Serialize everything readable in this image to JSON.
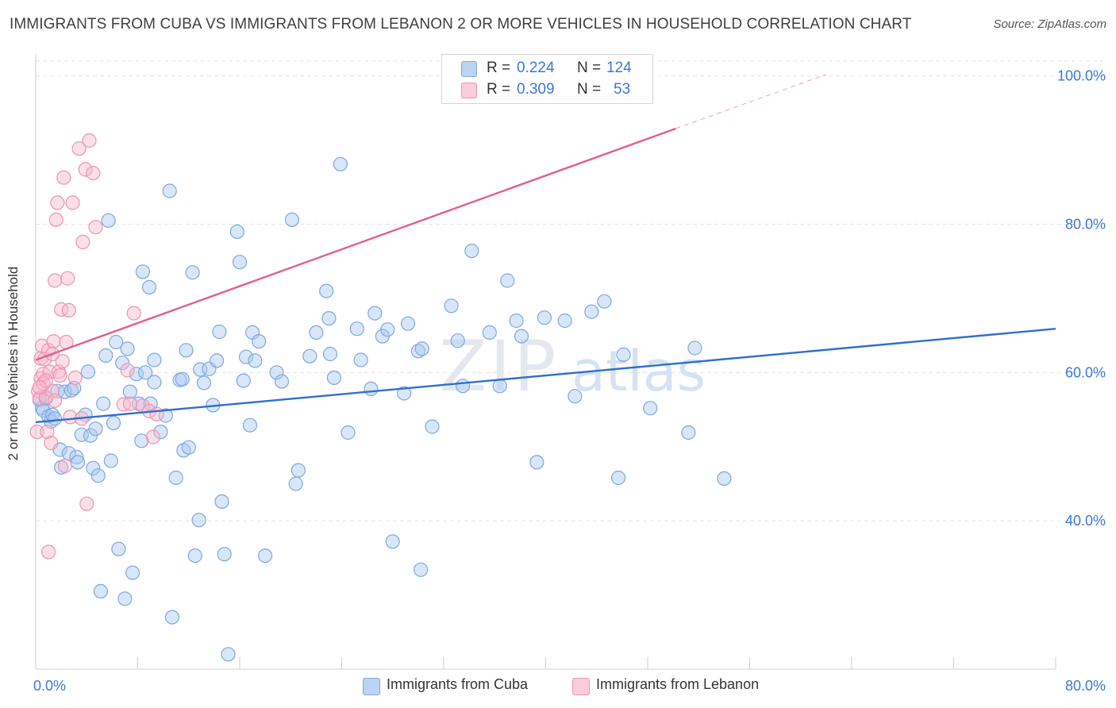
{
  "header": {
    "title": "IMMIGRANTS FROM CUBA VS IMMIGRANTS FROM LEBANON 2 OR MORE VEHICLES IN HOUSEHOLD CORRELATION CHART",
    "source": "Source: ZipAtlas.com"
  },
  "watermark": {
    "part1": "ZIP",
    "part2": "atlas"
  },
  "stats": {
    "rows": [
      {
        "r_label": "R =",
        "r_value": "0.224",
        "n_label": "N =",
        "n_value": "124",
        "color": "#a9c8f0"
      },
      {
        "r_label": "R =",
        "r_value": "0.309",
        "n_label": "N =",
        "n_value": "53",
        "color": "#f6b8cb"
      }
    ]
  },
  "legend": {
    "items": [
      {
        "label": "Immigrants from Cuba",
        "color": "#a9c8f0"
      },
      {
        "label": "Immigrants from Lebanon",
        "color": "#f6b8cb"
      }
    ]
  },
  "chart_data": {
    "type": "scatter",
    "title": "IMMIGRANTS FROM CUBA VS IMMIGRANTS FROM LEBANON 2 OR MORE VEHICLES IN HOUSEHOLD CORRELATION CHART",
    "xlabel": "",
    "ylabel": "2 or more Vehicles in Household",
    "xlim": [
      0,
      80
    ],
    "ylim": [
      20,
      102
    ],
    "x_tick_labels": [
      "0.0%",
      "80.0%"
    ],
    "y_ticks": [
      {
        "value": 40,
        "label": "40.0%"
      },
      {
        "value": 60,
        "label": "60.0%"
      },
      {
        "value": 80,
        "label": "80.0%"
      },
      {
        "value": 100,
        "label": "100.0%"
      }
    ],
    "grid": "horizontal dashed",
    "legend_position": "bottom-center",
    "series": [
      {
        "name": "Immigrants from Cuba",
        "color": "#a9c8f0",
        "stroke": "#7ea8e0",
        "trend_color": "#2f6fd0",
        "trend": {
          "x0": 0,
          "y0": 53.3,
          "x1": 80,
          "y1": 65.9
        },
        "points": [
          [
            0.3,
            56.3
          ],
          [
            0.5,
            55.2
          ],
          [
            0.6,
            54.9
          ],
          [
            0.8,
            56.5
          ],
          [
            1.0,
            54.1
          ],
          [
            1.2,
            53.4
          ],
          [
            1.3,
            54.3
          ],
          [
            1.5,
            53.8
          ],
          [
            1.7,
            57.5
          ],
          [
            1.9,
            49.6
          ],
          [
            2.0,
            47.2
          ],
          [
            2.3,
            57.4
          ],
          [
            2.6,
            49.1
          ],
          [
            2.8,
            57.6
          ],
          [
            3.0,
            57.9
          ],
          [
            3.2,
            48.6
          ],
          [
            3.3,
            47.9
          ],
          [
            3.6,
            51.6
          ],
          [
            3.9,
            54.3
          ],
          [
            4.1,
            60.1
          ],
          [
            4.3,
            51.5
          ],
          [
            4.5,
            47.1
          ],
          [
            4.7,
            52.4
          ],
          [
            4.9,
            46.1
          ],
          [
            5.1,
            30.5
          ],
          [
            5.3,
            55.8
          ],
          [
            5.5,
            62.3
          ],
          [
            5.7,
            80.5
          ],
          [
            5.9,
            48.1
          ],
          [
            6.1,
            53.2
          ],
          [
            6.3,
            64.1
          ],
          [
            6.5,
            36.2
          ],
          [
            6.8,
            61.3
          ],
          [
            7.0,
            29.5
          ],
          [
            7.2,
            63.2
          ],
          [
            7.4,
            57.4
          ],
          [
            7.6,
            33.0
          ],
          [
            7.9,
            59.8
          ],
          [
            8.1,
            55.8
          ],
          [
            8.3,
            50.8
          ],
          [
            8.4,
            73.6
          ],
          [
            8.6,
            60.0
          ],
          [
            9.0,
            55.8
          ],
          [
            8.9,
            71.5
          ],
          [
            9.3,
            58.7
          ],
          [
            9.3,
            61.7
          ],
          [
            9.8,
            52.0
          ],
          [
            10.2,
            54.2
          ],
          [
            10.5,
            84.5
          ],
          [
            10.7,
            27.0
          ],
          [
            11.0,
            45.8
          ],
          [
            11.3,
            59.0
          ],
          [
            11.6,
            49.5
          ],
          [
            11.8,
            63.0
          ],
          [
            12.0,
            49.9
          ],
          [
            12.3,
            73.5
          ],
          [
            12.5,
            35.3
          ],
          [
            12.8,
            40.1
          ],
          [
            12.9,
            60.4
          ],
          [
            13.2,
            58.6
          ],
          [
            13.6,
            60.5
          ],
          [
            13.9,
            55.6
          ],
          [
            14.2,
            61.6
          ],
          [
            14.4,
            65.5
          ],
          [
            14.6,
            42.6
          ],
          [
            14.8,
            35.5
          ],
          [
            15.1,
            22.0
          ],
          [
            15.8,
            79.0
          ],
          [
            16.0,
            74.9
          ],
          [
            16.3,
            58.9
          ],
          [
            16.5,
            62.1
          ],
          [
            16.8,
            52.9
          ],
          [
            17.0,
            65.4
          ],
          [
            17.2,
            61.6
          ],
          [
            17.5,
            64.2
          ],
          [
            18.0,
            35.3
          ],
          [
            18.9,
            60.0
          ],
          [
            19.3,
            58.8
          ],
          [
            20.1,
            80.6
          ],
          [
            20.4,
            45.0
          ],
          [
            20.6,
            46.8
          ],
          [
            22.0,
            65.4
          ],
          [
            22.8,
            71.0
          ],
          [
            23.0,
            67.3
          ],
          [
            23.1,
            62.5
          ],
          [
            23.4,
            59.3
          ],
          [
            23.9,
            88.1
          ],
          [
            24.5,
            51.9
          ],
          [
            25.2,
            65.9
          ],
          [
            25.5,
            61.7
          ],
          [
            26.3,
            57.8
          ],
          [
            26.6,
            68.0
          ],
          [
            27.2,
            64.9
          ],
          [
            27.6,
            65.8
          ],
          [
            28.0,
            37.2
          ],
          [
            28.9,
            57.2
          ],
          [
            29.2,
            66.6
          ],
          [
            30.0,
            62.9
          ],
          [
            30.2,
            33.4
          ],
          [
            30.3,
            63.2
          ],
          [
            31.1,
            52.7
          ],
          [
            32.6,
            69.0
          ],
          [
            33.1,
            64.3
          ],
          [
            33.5,
            58.2
          ],
          [
            34.2,
            76.4
          ],
          [
            35.6,
            65.4
          ],
          [
            36.4,
            58.2
          ],
          [
            37.0,
            72.4
          ],
          [
            37.7,
            67.0
          ],
          [
            38.1,
            64.9
          ],
          [
            39.3,
            47.9
          ],
          [
            39.9,
            67.4
          ],
          [
            41.5,
            67.0
          ],
          [
            42.3,
            56.8
          ],
          [
            43.6,
            68.2
          ],
          [
            44.6,
            69.6
          ],
          [
            45.7,
            45.8
          ],
          [
            46.1,
            62.4
          ],
          [
            48.2,
            55.2
          ],
          [
            51.2,
            51.9
          ],
          [
            51.7,
            63.3
          ],
          [
            54.0,
            45.7
          ],
          [
            21.5,
            62.2
          ],
          [
            11.5,
            59.1
          ]
        ]
      },
      {
        "name": "Immigrants from Lebanon",
        "color": "#f6b8cb",
        "stroke": "#ee95b0",
        "trend_color": "#e0608c",
        "trend": {
          "x0": 0,
          "y0": 61.7,
          "x1": 50.2,
          "y1": 92.9
        },
        "trend_dashed_to": {
          "x": 62,
          "y": 100.2
        },
        "points": [
          [
            0.1,
            52.0
          ],
          [
            0.2,
            57.5
          ],
          [
            0.3,
            56.5
          ],
          [
            0.4,
            59.2
          ],
          [
            0.4,
            61.9
          ],
          [
            0.5,
            63.6
          ],
          [
            0.6,
            59.8
          ],
          [
            0.7,
            61.8
          ],
          [
            0.8,
            56.7
          ],
          [
            0.9,
            52.0
          ],
          [
            1.0,
            63.0
          ],
          [
            1.1,
            60.1
          ],
          [
            1.2,
            50.5
          ],
          [
            1.3,
            57.5
          ],
          [
            1.4,
            64.2
          ],
          [
            1.5,
            72.4
          ],
          [
            1.6,
            80.6
          ],
          [
            1.7,
            82.9
          ],
          [
            1.8,
            60.1
          ],
          [
            1.9,
            59.6
          ],
          [
            2.0,
            68.5
          ],
          [
            2.1,
            61.5
          ],
          [
            2.2,
            86.3
          ],
          [
            2.3,
            47.4
          ],
          [
            2.4,
            64.1
          ],
          [
            2.5,
            72.7
          ],
          [
            2.6,
            68.4
          ],
          [
            2.7,
            54.0
          ],
          [
            2.9,
            82.9
          ],
          [
            3.1,
            59.3
          ],
          [
            3.4,
            90.2
          ],
          [
            3.6,
            53.8
          ],
          [
            3.7,
            77.6
          ],
          [
            3.9,
            87.4
          ],
          [
            4.2,
            91.3
          ],
          [
            4.5,
            86.9
          ],
          [
            4.7,
            79.6
          ],
          [
            6.9,
            55.7
          ],
          [
            7.2,
            60.3
          ],
          [
            7.4,
            55.8
          ],
          [
            7.7,
            68.0
          ],
          [
            8.4,
            55.5
          ],
          [
            8.9,
            54.8
          ],
          [
            9.2,
            51.3
          ],
          [
            9.5,
            54.4
          ],
          [
            43.2,
            100.0
          ],
          [
            1.0,
            35.8
          ],
          [
            4.0,
            42.3
          ],
          [
            0.6,
            58.5
          ],
          [
            0.8,
            58.9
          ],
          [
            1.3,
            62.5
          ],
          [
            1.5,
            56.2
          ],
          [
            0.3,
            58.0
          ]
        ]
      }
    ]
  }
}
